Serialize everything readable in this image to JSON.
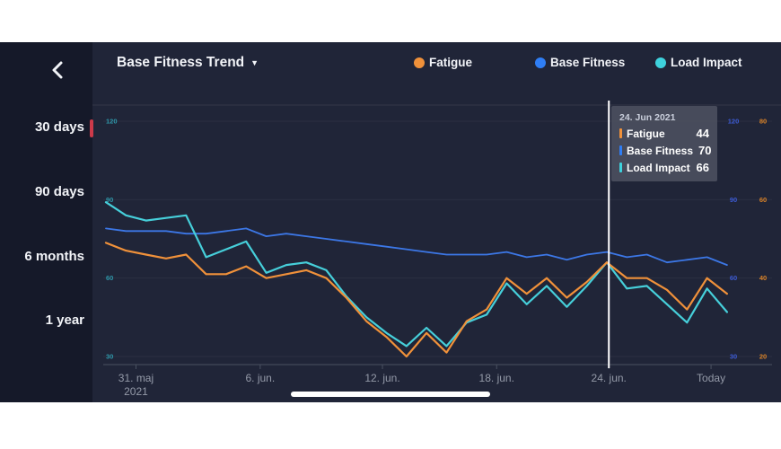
{
  "header": {
    "title": "Base Fitness Trend",
    "title_arrow": "▼"
  },
  "legend": [
    {
      "label": "Fatigue",
      "color": "#f0913a"
    },
    {
      "label": "Base Fitness",
      "color": "#2f7ef5"
    },
    {
      "label": "Load Impact",
      "color": "#3ed2dd"
    }
  ],
  "sidebar": {
    "ranges": [
      {
        "label": "30 days",
        "selected": true
      },
      {
        "label": "90 days",
        "selected": false
      },
      {
        "label": "6 months",
        "selected": false
      },
      {
        "label": "1 year",
        "selected": false
      }
    ],
    "selected_color": "#cc3a4a"
  },
  "tooltip": {
    "date": "24. Jun 2021",
    "rows": [
      {
        "label": "Fatigue",
        "value": "44",
        "color": "#f0913a"
      },
      {
        "label": "Base Fitness",
        "value": "70",
        "color": "#2f7ef5"
      },
      {
        "label": "Load Impact",
        "value": "66",
        "color": "#3ed2dd"
      }
    ]
  },
  "chart_data": {
    "type": "line",
    "title": "Base Fitness Trend",
    "grid": true,
    "legend_position": "top",
    "x_axis": {
      "ticks": [
        {
          "label": "31. maj",
          "sublabel": "2021",
          "index": 1.5
        },
        {
          "label": "6. jun.",
          "index": 7.7
        },
        {
          "label": "12. jun.",
          "index": 13.8
        },
        {
          "label": "18. jun.",
          "index": 19.5
        },
        {
          "label": "24. jun.",
          "index": 25.1
        },
        {
          "label": "Today",
          "index": 30.2
        }
      ]
    },
    "y_axes": {
      "left": {
        "name": "Load Impact",
        "color": "#2e96a8",
        "ticks": [
          120,
          90,
          60,
          30
        ],
        "min": 30,
        "max": 120
      },
      "right_inner": {
        "name": "Base Fitness",
        "color": "#3d5bd4",
        "ticks": [
          120,
          90,
          60,
          30
        ],
        "min": 30,
        "max": 120
      },
      "right_outer": {
        "name": "Fatigue",
        "color": "#d98228",
        "ticks": [
          80,
          60,
          40,
          20
        ],
        "min": 20,
        "max": 80
      }
    },
    "series": [
      {
        "name": "Base Fitness",
        "color": "#3c77e6",
        "width": 1.8,
        "axis": "right_inner",
        "values": [
          79,
          78,
          78,
          78,
          77,
          77,
          78,
          79,
          76,
          77,
          76,
          75,
          74,
          73,
          72,
          71,
          70,
          69,
          69,
          69,
          70,
          68,
          69,
          67,
          69,
          70,
          68,
          69,
          66,
          67,
          68,
          65
        ]
      },
      {
        "name": "Load Impact",
        "color": "#46cfda",
        "width": 2.2,
        "axis": "left",
        "values": [
          89,
          84,
          82,
          83,
          84,
          68,
          71,
          74,
          62,
          65,
          66,
          63,
          53,
          45,
          39,
          34,
          41,
          34,
          43,
          46,
          58,
          50,
          57,
          49,
          57,
          66,
          56,
          57,
          50,
          43,
          56,
          47
        ]
      },
      {
        "name": "Fatigue",
        "color": "#f0913a",
        "width": 2.2,
        "axis": "right_outer",
        "values": [
          49,
          47,
          46,
          45,
          46,
          41,
          41,
          43,
          40,
          41,
          42,
          40,
          35,
          29,
          25,
          20,
          26,
          21,
          29,
          32,
          40,
          36,
          40,
          35,
          39,
          44,
          40,
          40,
          37,
          32,
          40,
          36
        ]
      }
    ],
    "cursor": {
      "index": 25.1,
      "date": "24. Jun 2021",
      "values": {
        "fatigue": 44,
        "base_fitness": 70,
        "load_impact": 66
      }
    }
  }
}
